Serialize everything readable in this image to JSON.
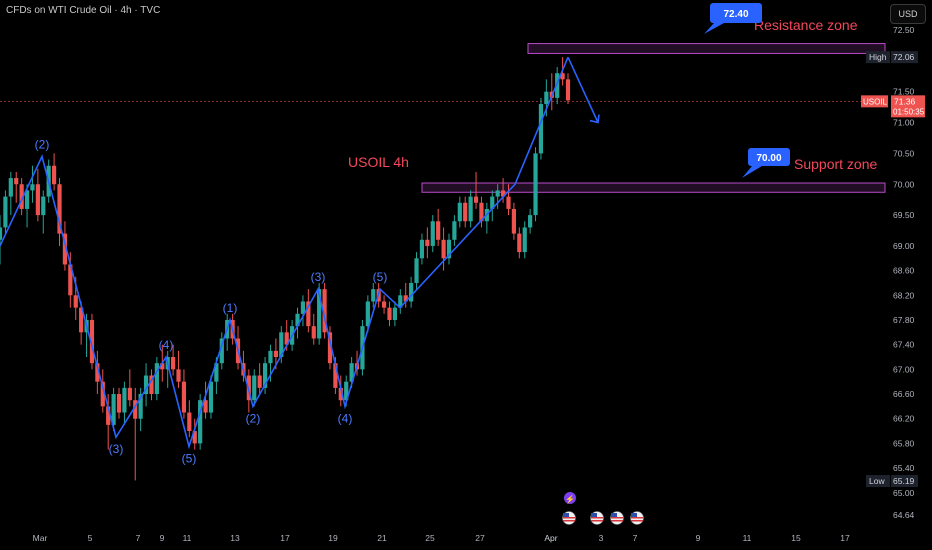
{
  "header": {
    "title": "CFDs on WTI Crude Oil · 4h · TVC",
    "currency_button": "USD"
  },
  "colors": {
    "up": "#26a69a",
    "down": "#ef5350",
    "wave": "#2962ff",
    "zone": "#b84bc8",
    "price_line": "#ef5350",
    "bubble": "#2962ff",
    "annotation_text": "#f2495c"
  },
  "chart_data": {
    "type": "candlestick",
    "title": "USOIL 4h",
    "ylim": [
      64.64,
      72.5
    ],
    "y_ticks": [
      72.5,
      71.5,
      71.0,
      70.5,
      70.0,
      69.5,
      69.0,
      68.6,
      68.2,
      67.8,
      67.4,
      67.0,
      66.6,
      66.2,
      65.8,
      65.4,
      65.0,
      64.64
    ],
    "x_ticks": [
      "Mar",
      "5",
      "7",
      "9",
      "11",
      "13",
      "17",
      "19",
      "21",
      "25",
      "27",
      "Apr",
      "3",
      "7",
      "9",
      "11",
      "15",
      "17"
    ],
    "price_labels": {
      "high": {
        "label": "High",
        "value": "72.06"
      },
      "low": {
        "label": "Low",
        "value": "65.19"
      },
      "current": {
        "symbol": "USOIL",
        "value": "71.36",
        "countdown": "01:50:35"
      }
    },
    "zones": [
      {
        "name": "Resistance zone",
        "low": 72.12,
        "high": 72.28,
        "bubble": "72.40"
      },
      {
        "name": "Support zone",
        "low": 69.87,
        "high": 70.02,
        "bubble": "70.00"
      }
    ],
    "wave_path": [
      {
        "date": "Feb 28",
        "value": 69.0
      },
      {
        "date": "Mar 3",
        "value": 70.45,
        "label": "(2)"
      },
      {
        "date": "Mar 6",
        "value": 65.9,
        "label": "(3)"
      },
      {
        "date": "Mar 10",
        "value": 67.2,
        "label": "(4)"
      },
      {
        "date": "Mar 11",
        "value": 65.75,
        "label": "(5)"
      },
      {
        "date": "Mar 13",
        "value": 67.8,
        "label": "(1)"
      },
      {
        "date": "Mar 14",
        "value": 66.4,
        "label": "(2)"
      },
      {
        "date": "Mar 18",
        "value": 68.3,
        "label": "(3)"
      },
      {
        "date": "Mar 19",
        "value": 66.4,
        "label": "(4)"
      },
      {
        "date": "Mar 21",
        "value": 68.3,
        "label": "(5)"
      },
      {
        "date": "Mar 24",
        "value": 68.0
      },
      {
        "date": "Mar 31",
        "value": 70.0
      },
      {
        "date": "Apr 1",
        "value": 72.06
      },
      {
        "date": "Apr 2",
        "value": 71.0
      }
    ],
    "candles": [
      {
        "o": 69.1,
        "h": 69.5,
        "l": 68.7,
        "c": 69.3
      },
      {
        "o": 69.3,
        "h": 69.9,
        "l": 69.2,
        "c": 69.8
      },
      {
        "o": 69.8,
        "h": 70.2,
        "l": 69.5,
        "c": 70.1
      },
      {
        "o": 70.1,
        "h": 70.2,
        "l": 69.7,
        "c": 70.0
      },
      {
        "o": 70.0,
        "h": 70.1,
        "l": 69.5,
        "c": 69.6
      },
      {
        "o": 69.6,
        "h": 70.0,
        "l": 69.3,
        "c": 69.9
      },
      {
        "o": 69.9,
        "h": 70.3,
        "l": 69.7,
        "c": 70.0
      },
      {
        "o": 70.0,
        "h": 70.25,
        "l": 69.4,
        "c": 69.5
      },
      {
        "o": 69.5,
        "h": 69.9,
        "l": 69.2,
        "c": 69.8
      },
      {
        "o": 69.8,
        "h": 70.4,
        "l": 69.7,
        "c": 70.3
      },
      {
        "o": 70.3,
        "h": 70.5,
        "l": 69.9,
        "c": 70.0
      },
      {
        "o": 70.0,
        "h": 70.1,
        "l": 69.0,
        "c": 69.2
      },
      {
        "o": 69.2,
        "h": 69.4,
        "l": 68.6,
        "c": 68.7
      },
      {
        "o": 68.7,
        "h": 68.9,
        "l": 68.0,
        "c": 68.2
      },
      {
        "o": 68.2,
        "h": 68.5,
        "l": 67.8,
        "c": 68.0
      },
      {
        "o": 68.0,
        "h": 68.1,
        "l": 67.4,
        "c": 67.6
      },
      {
        "o": 67.6,
        "h": 67.9,
        "l": 67.2,
        "c": 67.8
      },
      {
        "o": 67.8,
        "h": 67.9,
        "l": 67.0,
        "c": 67.1
      },
      {
        "o": 67.1,
        "h": 67.3,
        "l": 66.6,
        "c": 66.8
      },
      {
        "o": 66.8,
        "h": 67.0,
        "l": 66.3,
        "c": 66.4
      },
      {
        "o": 66.4,
        "h": 66.6,
        "l": 65.7,
        "c": 66.1
      },
      {
        "o": 66.1,
        "h": 66.7,
        "l": 66.0,
        "c": 66.6
      },
      {
        "o": 66.6,
        "h": 66.7,
        "l": 66.2,
        "c": 66.3
      },
      {
        "o": 66.3,
        "h": 66.8,
        "l": 66.1,
        "c": 66.7
      },
      {
        "o": 66.7,
        "h": 67.0,
        "l": 66.4,
        "c": 66.5
      },
      {
        "o": 66.5,
        "h": 66.7,
        "l": 65.2,
        "c": 66.2
      },
      {
        "o": 66.2,
        "h": 66.7,
        "l": 66.0,
        "c": 66.6
      },
      {
        "o": 66.6,
        "h": 67.1,
        "l": 66.4,
        "c": 66.9
      },
      {
        "o": 66.9,
        "h": 67.0,
        "l": 66.5,
        "c": 66.6
      },
      {
        "o": 66.6,
        "h": 67.2,
        "l": 66.5,
        "c": 67.1
      },
      {
        "o": 67.1,
        "h": 67.4,
        "l": 66.8,
        "c": 67.0
      },
      {
        "o": 67.0,
        "h": 67.3,
        "l": 66.7,
        "c": 67.2
      },
      {
        "o": 67.2,
        "h": 67.4,
        "l": 66.9,
        "c": 67.0
      },
      {
        "o": 67.0,
        "h": 67.3,
        "l": 66.7,
        "c": 66.8
      },
      {
        "o": 66.8,
        "h": 67.0,
        "l": 66.2,
        "c": 66.3
      },
      {
        "o": 66.3,
        "h": 66.5,
        "l": 65.9,
        "c": 66.0
      },
      {
        "o": 66.0,
        "h": 66.2,
        "l": 65.7,
        "c": 65.8
      },
      {
        "o": 65.8,
        "h": 66.6,
        "l": 65.7,
        "c": 66.5
      },
      {
        "o": 66.5,
        "h": 66.8,
        "l": 66.2,
        "c": 66.3
      },
      {
        "o": 66.3,
        "h": 66.9,
        "l": 66.2,
        "c": 66.8
      },
      {
        "o": 66.8,
        "h": 67.2,
        "l": 66.6,
        "c": 67.1
      },
      {
        "o": 67.1,
        "h": 67.6,
        "l": 67.0,
        "c": 67.5
      },
      {
        "o": 67.5,
        "h": 67.9,
        "l": 67.3,
        "c": 67.8
      },
      {
        "o": 67.8,
        "h": 67.9,
        "l": 67.4,
        "c": 67.5
      },
      {
        "o": 67.5,
        "h": 67.7,
        "l": 67.0,
        "c": 67.1
      },
      {
        "o": 67.1,
        "h": 67.3,
        "l": 66.8,
        "c": 66.9
      },
      {
        "o": 66.9,
        "h": 67.0,
        "l": 66.3,
        "c": 66.5
      },
      {
        "o": 66.5,
        "h": 67.0,
        "l": 66.4,
        "c": 66.9
      },
      {
        "o": 66.9,
        "h": 67.1,
        "l": 66.6,
        "c": 66.7
      },
      {
        "o": 66.7,
        "h": 67.2,
        "l": 66.6,
        "c": 67.1
      },
      {
        "o": 67.1,
        "h": 67.4,
        "l": 66.8,
        "c": 67.3
      },
      {
        "o": 67.3,
        "h": 67.5,
        "l": 67.0,
        "c": 67.2
      },
      {
        "o": 67.2,
        "h": 67.7,
        "l": 67.1,
        "c": 67.6
      },
      {
        "o": 67.6,
        "h": 67.8,
        "l": 67.3,
        "c": 67.4
      },
      {
        "o": 67.4,
        "h": 67.8,
        "l": 67.3,
        "c": 67.7
      },
      {
        "o": 67.7,
        "h": 68.0,
        "l": 67.5,
        "c": 67.9
      },
      {
        "o": 67.9,
        "h": 68.2,
        "l": 67.7,
        "c": 68.1
      },
      {
        "o": 68.1,
        "h": 68.3,
        "l": 67.6,
        "c": 67.7
      },
      {
        "o": 67.7,
        "h": 67.9,
        "l": 67.4,
        "c": 67.5
      },
      {
        "o": 67.5,
        "h": 68.4,
        "l": 67.4,
        "c": 68.3
      },
      {
        "o": 68.3,
        "h": 68.4,
        "l": 67.5,
        "c": 67.6
      },
      {
        "o": 67.6,
        "h": 67.7,
        "l": 67.0,
        "c": 67.1
      },
      {
        "o": 67.1,
        "h": 67.2,
        "l": 66.6,
        "c": 66.7
      },
      {
        "o": 66.7,
        "h": 66.9,
        "l": 66.4,
        "c": 66.5
      },
      {
        "o": 66.5,
        "h": 66.9,
        "l": 66.4,
        "c": 66.8
      },
      {
        "o": 66.8,
        "h": 67.2,
        "l": 66.7,
        "c": 67.1
      },
      {
        "o": 67.1,
        "h": 67.3,
        "l": 66.9,
        "c": 67.0
      },
      {
        "o": 67.0,
        "h": 67.8,
        "l": 66.9,
        "c": 67.7
      },
      {
        "o": 67.7,
        "h": 68.2,
        "l": 67.6,
        "c": 68.1
      },
      {
        "o": 68.1,
        "h": 68.4,
        "l": 68.0,
        "c": 68.3
      },
      {
        "o": 68.3,
        "h": 68.4,
        "l": 68.0,
        "c": 68.1
      },
      {
        "o": 68.1,
        "h": 68.2,
        "l": 67.9,
        "c": 68.0
      },
      {
        "o": 68.0,
        "h": 68.1,
        "l": 67.7,
        "c": 67.8
      },
      {
        "o": 67.8,
        "h": 68.1,
        "l": 67.7,
        "c": 68.0
      },
      {
        "o": 68.0,
        "h": 68.3,
        "l": 67.9,
        "c": 68.2
      },
      {
        "o": 68.2,
        "h": 68.4,
        "l": 68.0,
        "c": 68.1
      },
      {
        "o": 68.1,
        "h": 68.5,
        "l": 68.0,
        "c": 68.4
      },
      {
        "o": 68.4,
        "h": 68.9,
        "l": 68.3,
        "c": 68.8
      },
      {
        "o": 68.8,
        "h": 69.2,
        "l": 68.7,
        "c": 69.1
      },
      {
        "o": 69.1,
        "h": 69.3,
        "l": 68.8,
        "c": 69.0
      },
      {
        "o": 69.0,
        "h": 69.5,
        "l": 68.9,
        "c": 69.4
      },
      {
        "o": 69.4,
        "h": 69.6,
        "l": 69.0,
        "c": 69.1
      },
      {
        "o": 69.1,
        "h": 69.3,
        "l": 68.6,
        "c": 68.8
      },
      {
        "o": 68.8,
        "h": 69.2,
        "l": 68.7,
        "c": 69.1
      },
      {
        "o": 69.1,
        "h": 69.5,
        "l": 69.0,
        "c": 69.4
      },
      {
        "o": 69.4,
        "h": 69.8,
        "l": 69.3,
        "c": 69.7
      },
      {
        "o": 69.7,
        "h": 69.8,
        "l": 69.3,
        "c": 69.4
      },
      {
        "o": 69.4,
        "h": 69.9,
        "l": 69.3,
        "c": 69.8
      },
      {
        "o": 69.8,
        "h": 70.2,
        "l": 69.6,
        "c": 69.7
      },
      {
        "o": 69.7,
        "h": 69.8,
        "l": 69.3,
        "c": 69.4
      },
      {
        "o": 69.4,
        "h": 69.7,
        "l": 69.2,
        "c": 69.6
      },
      {
        "o": 69.6,
        "h": 69.9,
        "l": 69.4,
        "c": 69.8
      },
      {
        "o": 69.8,
        "h": 70.0,
        "l": 69.6,
        "c": 69.9
      },
      {
        "o": 69.9,
        "h": 70.1,
        "l": 69.7,
        "c": 69.8
      },
      {
        "o": 69.8,
        "h": 70.0,
        "l": 69.5,
        "c": 69.6
      },
      {
        "o": 69.6,
        "h": 69.7,
        "l": 69.1,
        "c": 69.2
      },
      {
        "o": 69.2,
        "h": 69.3,
        "l": 68.8,
        "c": 68.9
      },
      {
        "o": 68.9,
        "h": 69.4,
        "l": 68.8,
        "c": 69.3
      },
      {
        "o": 69.3,
        "h": 69.6,
        "l": 69.2,
        "c": 69.5
      },
      {
        "o": 69.5,
        "h": 70.6,
        "l": 69.4,
        "c": 70.5
      },
      {
        "o": 70.5,
        "h": 71.4,
        "l": 70.4,
        "c": 71.3
      },
      {
        "o": 71.3,
        "h": 71.7,
        "l": 71.1,
        "c": 71.5
      },
      {
        "o": 71.5,
        "h": 71.8,
        "l": 71.2,
        "c": 71.4
      },
      {
        "o": 71.4,
        "h": 71.9,
        "l": 71.3,
        "c": 71.8
      },
      {
        "o": 71.8,
        "h": 72.06,
        "l": 71.6,
        "c": 71.7
      },
      {
        "o": 71.7,
        "h": 71.8,
        "l": 71.3,
        "c": 71.36
      }
    ]
  }
}
